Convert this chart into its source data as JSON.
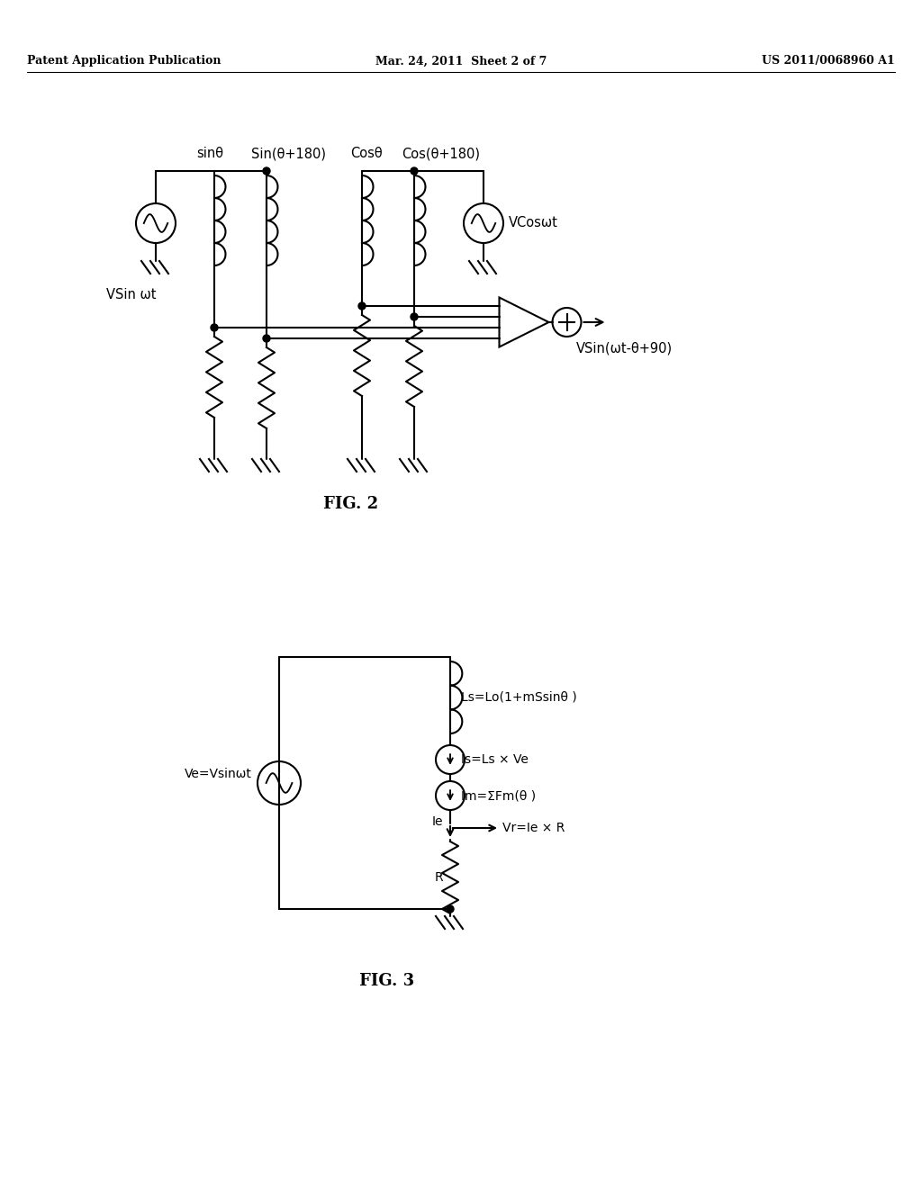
{
  "bg_color": "#ffffff",
  "line_color": "#000000",
  "header_left": "Patent Application Publication",
  "header_mid": "Mar. 24, 2011  Sheet 2 of 7",
  "header_right": "US 2011/0068960 A1",
  "fig2_label": "FIG. 2",
  "fig3_label": "FIG. 3",
  "fig2_labels": {
    "sinTheta": "sinθ",
    "sinTheta180": "Sin(θ+180)",
    "cosTheta": "Cosθ",
    "cosTheta180": "Cos(θ+180)",
    "vsinwt": "VSin ωt",
    "vcoswt": "VCosωt",
    "output": "VSin(ωt-θ+90)"
  },
  "fig3_labels": {
    "ls": "Ls=Lo(1+mSsinθ )",
    "is": "Is=Ls × Ve",
    "im": "Im=ΣFm(θ )",
    "vr": "Vr=Ie × R",
    "ve": "Ve=Vsinωt",
    "ie": "Ie",
    "r": "R"
  }
}
